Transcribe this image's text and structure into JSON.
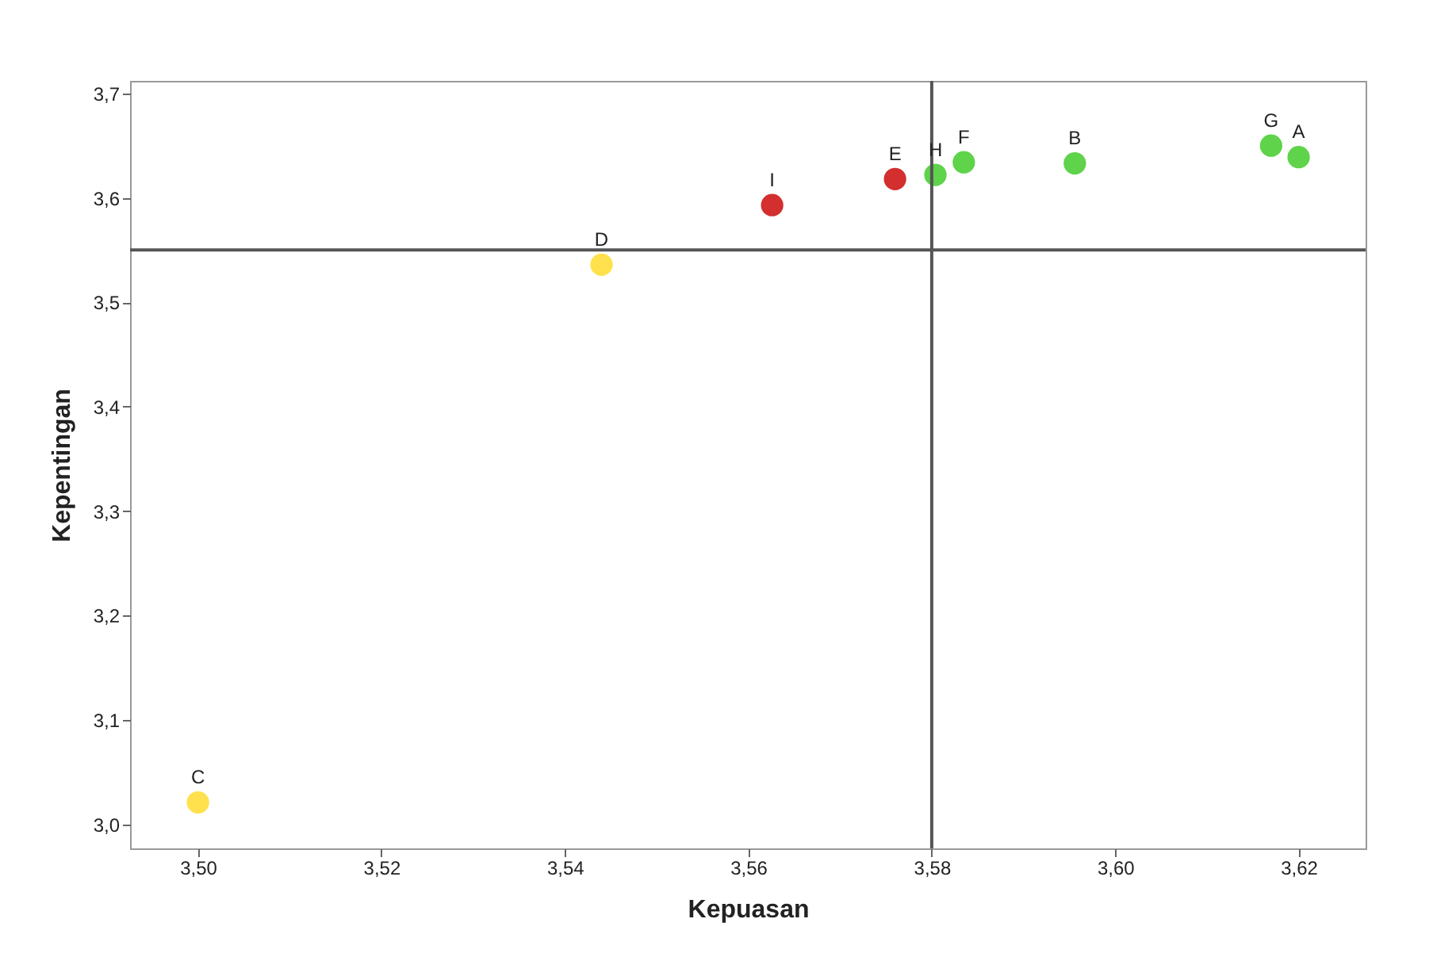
{
  "chart_data": {
    "type": "scatter",
    "xlabel": "Kepuasan",
    "ylabel": "Kepentingan",
    "xlim": [
      3.4926,
      3.6273
    ],
    "ylim": [
      2.977,
      3.712
    ],
    "xticks": [
      {
        "value": 3.5,
        "label": "3,50"
      },
      {
        "value": 3.52,
        "label": "3,52"
      },
      {
        "value": 3.54,
        "label": "3,54"
      },
      {
        "value": 3.56,
        "label": "3,56"
      },
      {
        "value": 3.58,
        "label": "3,58"
      },
      {
        "value": 3.6,
        "label": "3,60"
      },
      {
        "value": 3.62,
        "label": "3,62"
      }
    ],
    "yticks": [
      {
        "value": 3.0,
        "label": "3,0"
      },
      {
        "value": 3.1,
        "label": "3,1"
      },
      {
        "value": 3.2,
        "label": "3,2"
      },
      {
        "value": 3.3,
        "label": "3,3"
      },
      {
        "value": 3.4,
        "label": "3,4"
      },
      {
        "value": 3.5,
        "label": "3,5"
      },
      {
        "value": 3.6,
        "label": "3,6"
      },
      {
        "value": 3.7,
        "label": "3,7"
      }
    ],
    "series": [
      {
        "color": "#ffe14d",
        "x": [
          3.5,
          3.544
        ],
        "values": [
          3.021,
          3.536
        ]
      },
      {
        "color": "#d32f2f",
        "x": [
          3.5626,
          3.576
        ],
        "values": [
          3.593,
          3.618
        ]
      },
      {
        "color": "#5fd34a",
        "x": [
          3.5804,
          3.5835,
          3.5956,
          3.617,
          3.62
        ],
        "values": [
          3.622,
          3.634,
          3.633,
          3.65,
          3.639
        ]
      }
    ],
    "annotations": [
      {
        "text": "C",
        "x": 3.5,
        "y": 3.021
      },
      {
        "text": "D",
        "x": 3.544,
        "y": 3.536
      },
      {
        "text": "I",
        "x": 3.5626,
        "y": 3.593
      },
      {
        "text": "E",
        "x": 3.576,
        "y": 3.618
      },
      {
        "text": "H",
        "x": 3.5804,
        "y": 3.622
      },
      {
        "text": "F",
        "x": 3.5835,
        "y": 3.634
      },
      {
        "text": "B",
        "x": 3.5956,
        "y": 3.633
      },
      {
        "text": "G",
        "x": 3.617,
        "y": 3.65
      },
      {
        "text": "A",
        "x": 3.62,
        "y": 3.639
      }
    ],
    "ref_lines": [
      {
        "axis": "x",
        "value": 3.58
      },
      {
        "axis": "y",
        "value": 3.55
      }
    ],
    "marker": "circle",
    "grid": false
  }
}
